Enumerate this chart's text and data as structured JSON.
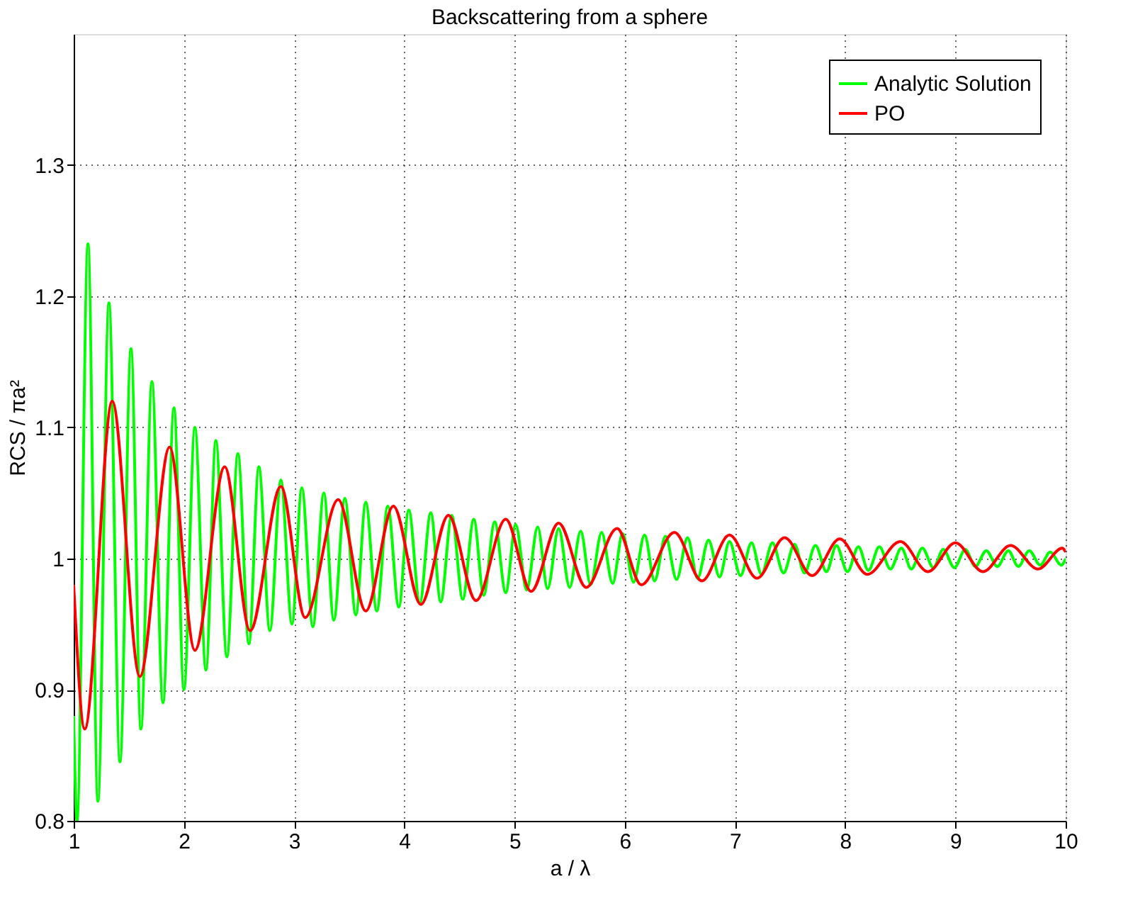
{
  "chart_data": {
    "type": "line",
    "title": "Backscattering from a sphere",
    "xlabel": "a / λ",
    "ylabel": "RCS / πa²",
    "xlim": [
      1,
      10
    ],
    "xticks": [
      1,
      2,
      3,
      4,
      5,
      6,
      7,
      8,
      9,
      10
    ],
    "ylim": [
      0.8,
      1.4
    ],
    "yticks": [
      0.8,
      0.9,
      1,
      1.1,
      1.2,
      1.3
    ],
    "grid": true,
    "legend": "top right",
    "marker": "none",
    "line_style": "solid",
    "series": [
      {
        "name": "Analytic Solution",
        "color": "#00ff00",
        "x": [
          1.0,
          1.03,
          1.13,
          1.22,
          1.32,
          1.42,
          1.52,
          1.61,
          1.71,
          1.81,
          1.91,
          2.0,
          2.1,
          2.2,
          2.29,
          2.39,
          2.49,
          2.59,
          2.68,
          2.78,
          2.88,
          2.98,
          3.07,
          3.17,
          3.27,
          3.36,
          3.46,
          3.56,
          3.65,
          3.75,
          3.85,
          3.95,
          4.04,
          4.14,
          4.24,
          4.33,
          4.43,
          4.53,
          4.63,
          4.72,
          4.82,
          4.92,
          5.01,
          5.11,
          5.21,
          5.3,
          5.4,
          5.5,
          5.6,
          5.69,
          5.79,
          5.89,
          5.98,
          6.08,
          6.18,
          6.27,
          6.37,
          6.47,
          6.57,
          6.66,
          6.76,
          6.86,
          6.95,
          7.05,
          7.15,
          7.24,
          7.34,
          7.44,
          7.54,
          7.63,
          7.73,
          7.83,
          7.92,
          8.02,
          8.12,
          8.21,
          8.31,
          8.41,
          8.51,
          8.6,
          8.7,
          8.8,
          8.89,
          8.99,
          9.09,
          9.18,
          9.28,
          9.38,
          9.48,
          9.57,
          9.67,
          9.77,
          9.86,
          9.96,
          10.0
        ],
        "values": [
          0.88,
          0.8,
          1.24,
          0.815,
          1.195,
          0.845,
          1.16,
          0.87,
          1.135,
          0.89,
          1.115,
          0.9,
          1.1,
          0.915,
          1.09,
          0.925,
          1.08,
          0.935,
          1.07,
          0.945,
          1.06,
          0.95,
          1.054,
          0.948,
          1.05,
          0.953,
          1.046,
          0.957,
          1.043,
          0.96,
          1.04,
          0.963,
          1.037,
          0.966,
          1.035,
          0.967,
          1.033,
          0.969,
          1.03,
          0.972,
          1.028,
          0.974,
          1.026,
          0.976,
          1.024,
          0.977,
          1.023,
          0.978,
          1.021,
          0.98,
          1.02,
          0.981,
          1.019,
          0.982,
          1.018,
          0.983,
          1.017,
          0.984,
          1.016,
          0.985,
          1.014,
          0.986,
          1.013,
          0.987,
          1.012,
          0.988,
          1.012,
          0.989,
          1.011,
          0.989,
          1.01,
          0.99,
          1.01,
          0.99,
          1.009,
          0.991,
          1.009,
          0.992,
          1.008,
          0.992,
          1.008,
          0.993,
          1.007,
          0.993,
          1.007,
          0.994,
          1.006,
          0.994,
          1.006,
          0.994,
          1.006,
          0.995,
          1.005,
          0.995,
          1.0
        ]
      },
      {
        "name": "PO",
        "color": "#ff0000",
        "x": [
          1.0,
          1.1,
          1.35,
          1.6,
          1.87,
          2.1,
          2.37,
          2.6,
          2.88,
          3.1,
          3.4,
          3.65,
          3.9,
          4.15,
          4.4,
          4.65,
          4.92,
          5.15,
          5.4,
          5.65,
          5.93,
          6.15,
          6.45,
          6.7,
          6.95,
          7.2,
          7.45,
          7.7,
          7.95,
          8.2,
          8.5,
          8.75,
          9.0,
          9.25,
          9.5,
          9.75,
          9.97,
          10.0
        ],
        "values": [
          0.98,
          0.87,
          1.12,
          0.91,
          1.085,
          0.93,
          1.07,
          0.945,
          1.055,
          0.955,
          1.045,
          0.96,
          1.04,
          0.965,
          1.033,
          0.968,
          1.03,
          0.975,
          1.027,
          0.978,
          1.023,
          0.98,
          1.02,
          0.983,
          1.018,
          0.985,
          1.016,
          0.987,
          1.015,
          0.988,
          1.013,
          0.99,
          1.012,
          0.99,
          1.01,
          0.992,
          1.008,
          1.005
        ]
      }
    ]
  }
}
